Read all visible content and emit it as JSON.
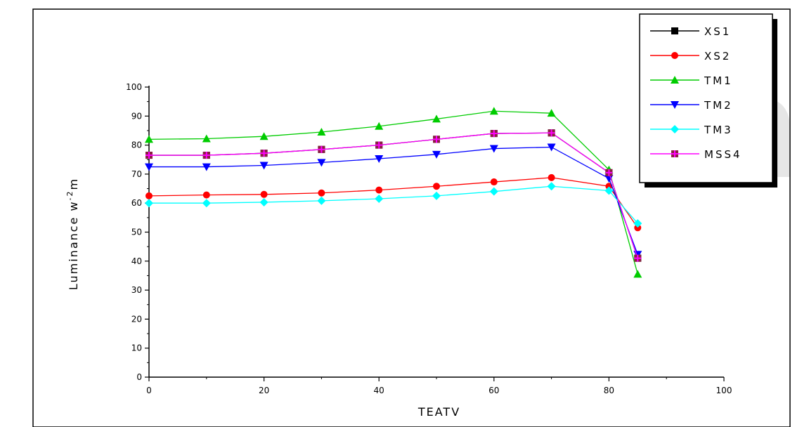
{
  "chart_data": {
    "type": "line",
    "title": "",
    "xlabel": "TEATV",
    "ylabel": "Luminance w",
    "ylabel_superscript": "-2",
    "ylabel_suffix": "m",
    "xlim": [
      0,
      100
    ],
    "ylim": [
      0,
      100
    ],
    "x_ticks": [
      0,
      20,
      40,
      60,
      80,
      100
    ],
    "x_tick_labels": [
      "0",
      "20",
      "40",
      "60",
      "80",
      "100"
    ],
    "y_ticks": [
      0,
      10,
      20,
      30,
      40,
      50,
      60,
      70,
      80,
      90,
      100
    ],
    "y_tick_labels": [
      "0",
      "10",
      "20",
      "30",
      "40",
      "50",
      "60",
      "70",
      "80",
      "90",
      "100"
    ],
    "grid": false,
    "legend_position": "top-right",
    "x": [
      0,
      10,
      20,
      30,
      40,
      50,
      60,
      70,
      80,
      85
    ],
    "series": [
      {
        "name": "XS1",
        "color": "#000000",
        "marker": "square",
        "values": [
          76.5,
          76.5,
          77.2,
          78.5,
          80.0,
          82.0,
          84.0,
          84.2,
          70.5,
          41.0
        ]
      },
      {
        "name": "XS2",
        "color": "#ff0000",
        "marker": "circle",
        "values": [
          62.5,
          62.8,
          63.0,
          63.5,
          64.5,
          65.8,
          67.3,
          68.8,
          65.8,
          51.5
        ]
      },
      {
        "name": "TM1",
        "color": "#00cc00",
        "marker": "triangle-up",
        "values": [
          82.0,
          82.2,
          83.0,
          84.5,
          86.5,
          89.0,
          91.7,
          91.0,
          71.5,
          35.5
        ]
      },
      {
        "name": "TM2",
        "color": "#0000ff",
        "marker": "triangle-down",
        "values": [
          72.5,
          72.5,
          73.0,
          74.0,
          75.3,
          76.8,
          78.8,
          79.3,
          68.5,
          42.3
        ]
      },
      {
        "name": "TM3",
        "color": "#00ffff",
        "marker": "diamond",
        "values": [
          60.0,
          60.0,
          60.3,
          60.8,
          61.5,
          62.5,
          64.0,
          65.8,
          64.3,
          53.0
        ]
      },
      {
        "name": "MSS4",
        "color": "#ff00ff",
        "marker": "plus",
        "values": [
          76.5,
          76.5,
          77.2,
          78.5,
          80.0,
          82.0,
          84.0,
          84.2,
          70.5,
          41.0
        ]
      }
    ]
  }
}
